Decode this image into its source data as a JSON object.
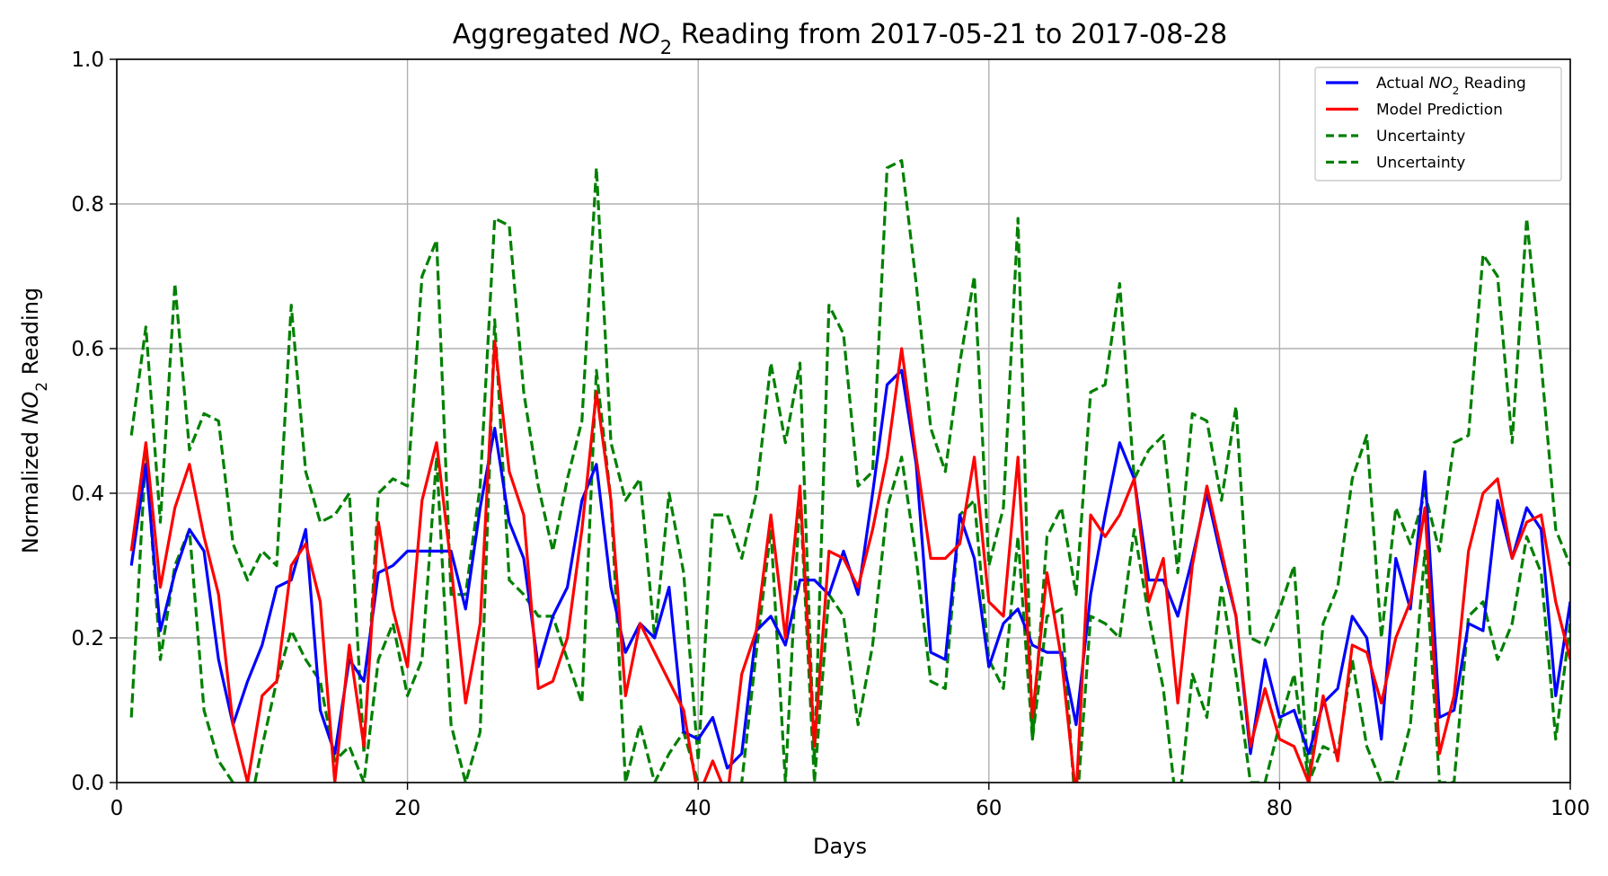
{
  "chart_data": {
    "type": "line",
    "title": "Aggregated NO2 Reading from 2017-05-21 to 2017-08-28",
    "title_parts": [
      "Aggregated ",
      "NO",
      "2",
      " Reading from 2017-05-21 to 2017-08-28"
    ],
    "xlabel": "Days",
    "ylabel": "Normalized NO2 Reading",
    "ylabel_parts": [
      "Normalized ",
      "NO",
      "2",
      " Reading"
    ],
    "xlim": [
      0,
      100
    ],
    "ylim": [
      0,
      1
    ],
    "xticks": [
      "0",
      "20",
      "40",
      "60",
      "80",
      "100"
    ],
    "yticks": [
      "0.0",
      "0.2",
      "0.4",
      "0.6",
      "0.8",
      "1.0"
    ],
    "grid": true,
    "legend_position": "top-right",
    "x": [
      1,
      2,
      3,
      4,
      5,
      6,
      7,
      8,
      9,
      10,
      11,
      12,
      13,
      14,
      15,
      16,
      17,
      18,
      19,
      20,
      21,
      22,
      23,
      24,
      25,
      26,
      27,
      28,
      29,
      30,
      31,
      32,
      33,
      34,
      35,
      36,
      37,
      38,
      39,
      40,
      41,
      42,
      43,
      44,
      45,
      46,
      47,
      48,
      49,
      50,
      51,
      52,
      53,
      54,
      55,
      56,
      57,
      58,
      59,
      60,
      61,
      62,
      63,
      64,
      65,
      66,
      67,
      68,
      69,
      70,
      71,
      72,
      73,
      74,
      75,
      76,
      77,
      78,
      79,
      80,
      81,
      82,
      83,
      84,
      85,
      86,
      87,
      88,
      89,
      90,
      91,
      92,
      93,
      94,
      95,
      96,
      97,
      98,
      99,
      100
    ],
    "series": [
      {
        "name": "Actual NO2 Reading",
        "legend_parts": [
          "Actual ",
          "NO",
          "2",
          " Reading"
        ],
        "color": "#0000ff",
        "style": "solid",
        "values": [
          0.3,
          0.44,
          0.21,
          0.29,
          0.35,
          0.32,
          0.17,
          0.08,
          0.14,
          0.19,
          0.27,
          0.28,
          0.35,
          0.1,
          0.04,
          0.17,
          0.14,
          0.29,
          0.3,
          0.32,
          0.32,
          0.32,
          0.32,
          0.24,
          0.38,
          0.49,
          0.36,
          0.31,
          0.16,
          0.23,
          0.27,
          0.39,
          0.44,
          0.27,
          0.18,
          0.22,
          0.2,
          0.27,
          0.07,
          0.06,
          0.09,
          0.02,
          0.04,
          0.21,
          0.23,
          0.19,
          0.28,
          0.28,
          0.26,
          0.32,
          0.26,
          0.4,
          0.55,
          0.57,
          0.44,
          0.18,
          0.17,
          0.37,
          0.31,
          0.16,
          0.22,
          0.24,
          0.19,
          0.18,
          0.18,
          0.08,
          0.26,
          0.37,
          0.47,
          0.42,
          0.28,
          0.28,
          0.23,
          0.31,
          0.4,
          0.31,
          0.23,
          0.04,
          0.17,
          0.09,
          0.1,
          0.04,
          0.11,
          0.13,
          0.23,
          0.2,
          0.06,
          0.31,
          0.24,
          0.43,
          0.09,
          0.1,
          0.22,
          0.21,
          0.39,
          0.31,
          0.38,
          0.35,
          0.12,
          0.25
        ]
      },
      {
        "name": "Model Prediction",
        "legend_parts": [
          "Model Prediction"
        ],
        "color": "#ff0000",
        "style": "solid",
        "values": [
          0.32,
          0.47,
          0.27,
          0.38,
          0.44,
          0.34,
          0.26,
          0.08,
          0.0,
          0.12,
          0.14,
          0.3,
          0.33,
          0.25,
          0.0,
          0.19,
          0.05,
          0.36,
          0.24,
          0.16,
          0.39,
          0.47,
          0.3,
          0.11,
          0.22,
          0.61,
          0.43,
          0.37,
          0.13,
          0.14,
          0.2,
          0.35,
          0.54,
          0.39,
          0.12,
          0.22,
          0.18,
          0.14,
          0.1,
          -0.02,
          0.03,
          -0.02,
          0.15,
          0.21,
          0.37,
          0.2,
          0.41,
          0.05,
          0.32,
          0.31,
          0.27,
          0.35,
          0.45,
          0.6,
          0.45,
          0.31,
          0.31,
          0.33,
          0.45,
          0.25,
          0.23,
          0.45,
          0.09,
          0.29,
          0.17,
          -0.02,
          0.37,
          0.34,
          0.37,
          0.42,
          0.25,
          0.31,
          0.11,
          0.3,
          0.41,
          0.32,
          0.23,
          0.05,
          0.13,
          0.06,
          0.05,
          0.0,
          0.12,
          0.03,
          0.19,
          0.18,
          0.11,
          0.2,
          0.25,
          0.38,
          0.04,
          0.12,
          0.32,
          0.4,
          0.42,
          0.31,
          0.36,
          0.37,
          0.25,
          0.17
        ]
      },
      {
        "name": "Uncertainty",
        "legend_parts": [
          "Uncertainty"
        ],
        "color": "#008000",
        "style": "dashed",
        "values": [
          0.48,
          0.63,
          0.36,
          0.69,
          0.46,
          0.51,
          0.5,
          0.33,
          0.28,
          0.32,
          0.3,
          0.66,
          0.43,
          0.36,
          0.37,
          0.4,
          0.04,
          0.4,
          0.42,
          0.41,
          0.7,
          0.75,
          0.26,
          0.26,
          0.41,
          0.78,
          0.77,
          0.54,
          0.41,
          0.32,
          0.42,
          0.5,
          0.85,
          0.47,
          0.39,
          0.42,
          0.2,
          0.4,
          0.29,
          0.03,
          0.37,
          0.37,
          0.31,
          0.4,
          0.58,
          0.47,
          0.58,
          0.03,
          0.66,
          0.62,
          0.41,
          0.43,
          0.85,
          0.86,
          0.69,
          0.49,
          0.43,
          0.58,
          0.7,
          0.3,
          0.38,
          0.78,
          0.06,
          0.34,
          0.38,
          0.26,
          0.54,
          0.55,
          0.69,
          0.42,
          0.46,
          0.48,
          0.29,
          0.51,
          0.5,
          0.39,
          0.52,
          0.2,
          0.19,
          0.24,
          0.3,
          0.0,
          0.22,
          0.27,
          0.42,
          0.48,
          0.2,
          0.38,
          0.33,
          0.4,
          0.32,
          0.47,
          0.48,
          0.73,
          0.7,
          0.47,
          0.78,
          0.58,
          0.35,
          0.3
        ]
      },
      {
        "name": "Uncertainty",
        "legend_parts": [
          "Uncertainty"
        ],
        "color": "#008000",
        "style": "dashed",
        "values": [
          0.09,
          0.46,
          0.17,
          0.3,
          0.35,
          0.1,
          0.03,
          0.0,
          -0.05,
          0.05,
          0.14,
          0.21,
          0.17,
          0.14,
          0.03,
          0.05,
          0.0,
          0.17,
          0.22,
          0.12,
          0.17,
          0.45,
          0.08,
          0.0,
          0.07,
          0.64,
          0.28,
          0.26,
          0.23,
          0.23,
          0.17,
          0.11,
          0.57,
          0.39,
          0.0,
          0.08,
          0.0,
          0.04,
          0.07,
          0.0,
          -0.05,
          -0.05,
          0.0,
          0.18,
          0.35,
          0.0,
          0.4,
          0.0,
          0.26,
          0.23,
          0.08,
          0.19,
          0.38,
          0.45,
          0.31,
          0.14,
          0.13,
          0.37,
          0.39,
          0.17,
          0.13,
          0.34,
          0.06,
          0.23,
          0.24,
          -0.05,
          0.23,
          0.22,
          0.2,
          0.35,
          0.23,
          0.13,
          -0.05,
          0.15,
          0.09,
          0.27,
          0.15,
          0.0,
          0.0,
          0.08,
          0.15,
          0.0,
          0.05,
          0.04,
          0.17,
          0.05,
          0.0,
          0.0,
          0.08,
          0.32,
          0.0,
          0.0,
          0.23,
          0.25,
          0.17,
          0.22,
          0.34,
          0.29,
          0.06,
          0.22
        ]
      }
    ]
  }
}
